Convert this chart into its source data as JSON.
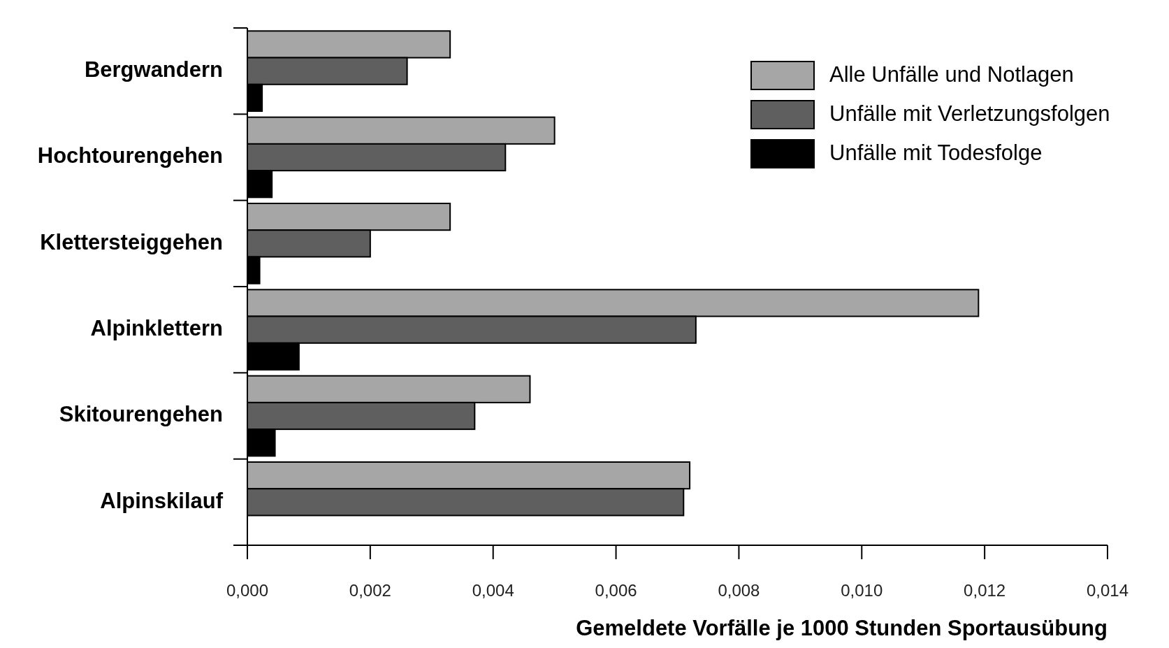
{
  "chart_data": {
    "type": "bar",
    "orientation": "horizontal",
    "xlabel": "Gemeldete Vorfälle je 1000 Stunden Sportausübung",
    "categories": [
      "Bergwandern",
      "Hochtourengehen",
      "Klettersteiggehen",
      "Alpinklettern",
      "Skitourengehen",
      "Alpinskilauf"
    ],
    "series": [
      {
        "name": "Alle Unfälle und Notlagen",
        "color": "#a6a6a6",
        "values": [
          0.0033,
          0.005,
          0.0033,
          0.0119,
          0.0046,
          0.0072
        ]
      },
      {
        "name": "Unfälle mit Verletzungsfolgen",
        "color": "#5f5f5f",
        "values": [
          0.0026,
          0.0042,
          0.002,
          0.0073,
          0.0037,
          0.0071
        ]
      },
      {
        "name": "Unfälle mit Todesfolge",
        "color": "#000000",
        "values": [
          0.00024,
          0.0004,
          0.0002,
          0.00084,
          0.00045,
          0
        ]
      }
    ],
    "xlim": [
      0,
      0.014
    ],
    "xticks": [
      {
        "value": 0,
        "label": "0,000"
      },
      {
        "value": 0.002,
        "label": "0,002"
      },
      {
        "value": 0.004,
        "label": "0,004"
      },
      {
        "value": 0.006,
        "label": "0,006"
      },
      {
        "value": 0.008,
        "label": "0,008"
      },
      {
        "value": 0.01,
        "label": "0,010"
      },
      {
        "value": 0.012,
        "label": "0,012"
      },
      {
        "value": 0.014,
        "label": "0,014"
      }
    ],
    "legend": "top right",
    "grid": false
  }
}
